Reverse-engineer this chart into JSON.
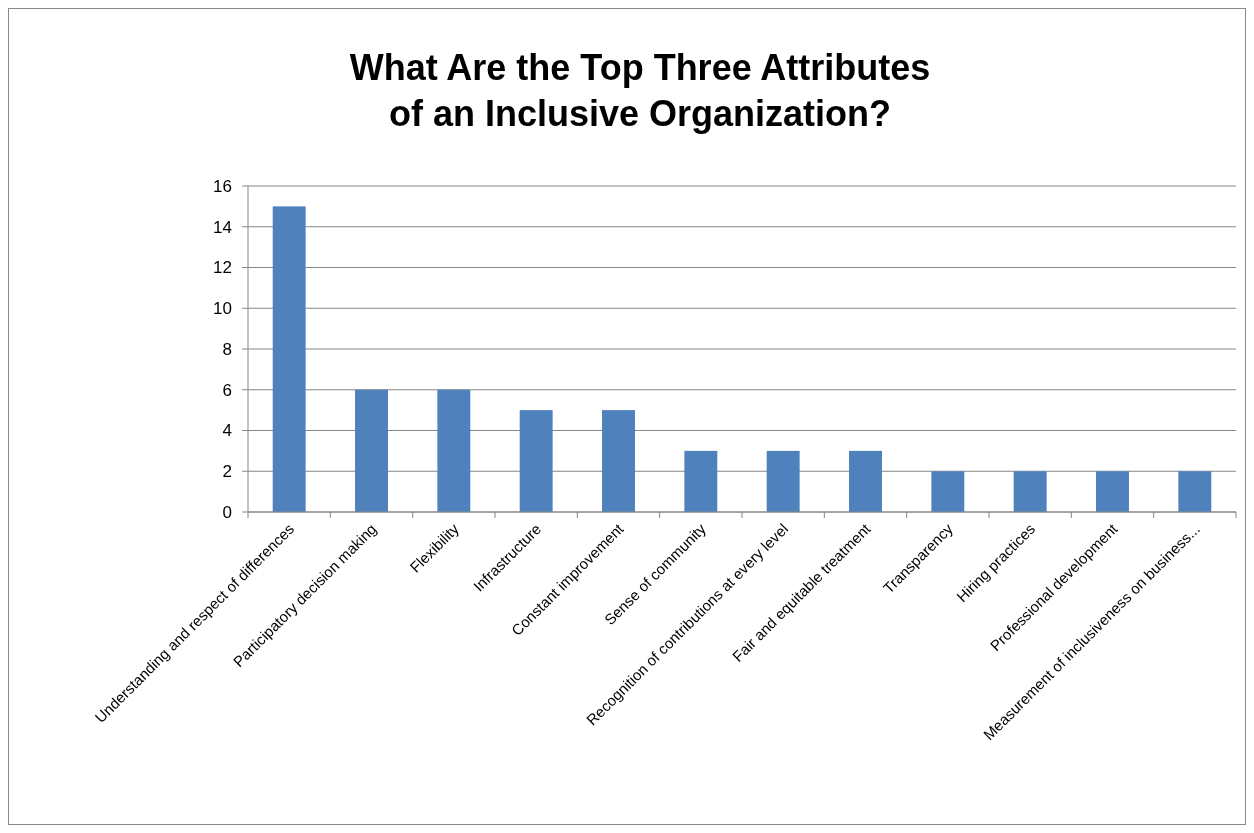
{
  "chart_data": {
    "type": "bar",
    "title": "What Are the Top Three Attributes\nof an Inclusive Organization?",
    "categories": [
      "Understanding and respect of differences",
      "Participatory decision making",
      "Flexibility",
      "Infrastructure",
      "Constant improvement",
      "Sense of community",
      "Recognition of contributions at every level",
      "Fair and equitable treatment",
      "Transparency",
      "Hiring practices",
      "Professional development",
      "Measurement of inclusiveness on business..."
    ],
    "values": [
      15,
      6,
      6,
      5,
      5,
      3,
      3,
      3,
      2,
      2,
      2,
      2
    ],
    "color": "#4f81bd",
    "ylim": [
      0,
      16
    ],
    "yticks": [
      0,
      2,
      4,
      6,
      8,
      10,
      12,
      14,
      16
    ],
    "grid": "y"
  }
}
